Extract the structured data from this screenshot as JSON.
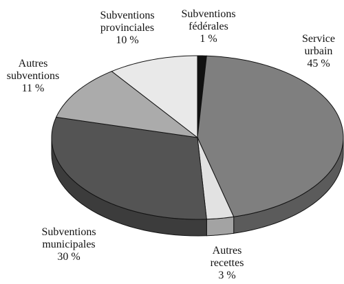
{
  "chart_data": {
    "type": "pie",
    "categories": [
      "Subventions fédérales",
      "Service urbain",
      "Autres recettes",
      "Subventions municipales",
      "Autres subventions",
      "Subventions provinciales"
    ],
    "values": [
      1,
      45,
      3,
      30,
      11,
      10
    ],
    "value_labels": [
      "1 %",
      "45 %",
      "3 %",
      "30 %",
      "11 %",
      "10 %"
    ],
    "colors": [
      "#111111",
      "#7f7f7f",
      "#e2e2e2",
      "#545454",
      "#ababab",
      "#e9e9e9"
    ]
  }
}
